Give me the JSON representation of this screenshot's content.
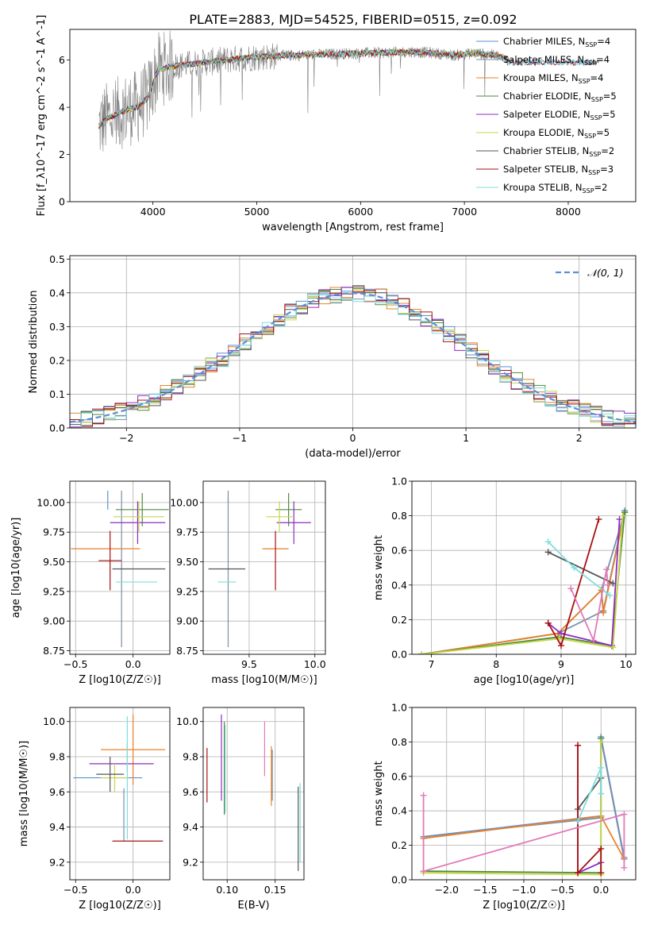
{
  "figure_title": "PLATE=2883, MJD=54525, FIBERID=0515, z=0.092",
  "models": [
    {
      "name": "Chabrier MILES",
      "nssp": "4",
      "color": "#5b8fd9"
    },
    {
      "name": "Salpeter MILES",
      "nssp": "4",
      "color": "#7b8fa8"
    },
    {
      "name": "Kroupa MILES",
      "nssp": "4",
      "color": "#e8822a"
    },
    {
      "name": "Chabrier ELODIE",
      "nssp": "5",
      "color": "#4f8a3a"
    },
    {
      "name": "Salpeter ELODIE",
      "nssp": "5",
      "color": "#8e2dc0"
    },
    {
      "name": "Kroupa ELODIE",
      "nssp": "5",
      "color": "#c7d64a"
    },
    {
      "name": "Chabrier STELIB",
      "nssp": "2",
      "color": "#555555"
    },
    {
      "name": "Salpeter STELIB",
      "nssp": "3",
      "color": "#a81010"
    },
    {
      "name": "Kroupa STELIB",
      "nssp": "2",
      "color": "#7fdede"
    }
  ],
  "legend_prefix": "N",
  "legend_sub": "SSP",
  "chart_data": [
    {
      "type": "line",
      "id": "spectrum",
      "xlabel": "wavelength [Angstrom, rest frame]",
      "ylabel": "Flux [f_λ10^-17 erg cm^-2 s^-1 A^-1]",
      "xlim": [
        3200,
        8650
      ],
      "ylim": [
        0,
        7.3
      ],
      "xticks": [
        4000,
        5000,
        6000,
        7000,
        8000
      ],
      "yticks": [
        0,
        2,
        4,
        6
      ],
      "grid": false,
      "legend": "right",
      "data_color": "#808080",
      "continuum_x": [
        3480,
        3550,
        3650,
        3750,
        3850,
        3950,
        4050,
        4150,
        4300,
        4500,
        4700,
        4900,
        5100,
        5300,
        5500,
        5700,
        5900,
        6100,
        6300,
        6500,
        6700,
        6900,
        7100,
        7300,
        7420
      ],
      "continuum_y": [
        3.2,
        3.5,
        3.7,
        3.9,
        4.0,
        4.4,
        5.6,
        5.7,
        5.8,
        5.9,
        6.0,
        6.1,
        6.15,
        6.2,
        6.22,
        6.25,
        6.28,
        6.3,
        6.32,
        6.35,
        6.3,
        6.2,
        6.3,
        6.2,
        6.0
      ]
    },
    {
      "type": "histogram",
      "id": "residuals",
      "xlabel": "(data-model)/error",
      "ylabel": "Normed distribution",
      "xlim": [
        -2.5,
        2.5
      ],
      "ylim": [
        0,
        0.51
      ],
      "xticks": [
        -2,
        -1,
        0,
        1,
        2
      ],
      "yticks": [
        0.0,
        0.1,
        0.2,
        0.3,
        0.4,
        0.5
      ],
      "grid": true,
      "legend": "top-right",
      "reference_label": "𝒩(0, 1)",
      "reference_color": "#5b8fd9",
      "bin_width": 0.1
    },
    {
      "type": "scatter",
      "id": "age_vs_Z",
      "xlabel": "Z [log10(Z/Z☉)]",
      "ylabel": "age [log10(age/yr)]",
      "xlim": [
        -0.55,
        0.32
      ],
      "ylim": [
        8.72,
        10.18
      ],
      "xticks": [
        -0.5,
        0.0
      ],
      "yticks": [
        8.75,
        9.0,
        9.25,
        9.5,
        9.75,
        10.0
      ],
      "grid": true,
      "points": [
        {
          "x": -0.22,
          "y": 10.02,
          "xerr": 0.0,
          "yerr": 0.08
        },
        {
          "x": -0.1,
          "y": 9.44,
          "xerr": 0.0,
          "yerr": 0.66
        },
        {
          "x": -0.24,
          "y": 9.61,
          "xerr": 0.3,
          "yerr": 0.0
        },
        {
          "x": 0.08,
          "y": 9.94,
          "xerr": 0.23,
          "yerr": 0.14
        },
        {
          "x": 0.04,
          "y": 9.83,
          "xerr": 0.24,
          "yerr": 0.18
        },
        {
          "x": 0.05,
          "y": 9.88,
          "xerr": 0.22,
          "yerr": 0.13
        },
        {
          "x": 0.05,
          "y": 9.44,
          "xerr": 0.23,
          "yerr": 0.0
        },
        {
          "x": -0.2,
          "y": 9.51,
          "xerr": 0.1,
          "yerr": 0.25
        },
        {
          "x": 0.03,
          "y": 9.33,
          "xerr": 0.18,
          "yerr": 0.0
        }
      ]
    },
    {
      "type": "scatter",
      "id": "age_vs_mass",
      "xlabel": "mass [log10(M/M☉)]",
      "ylabel": "",
      "xlim": [
        9.15,
        10.08
      ],
      "ylim": [
        8.72,
        10.18
      ],
      "xticks": [
        9.5,
        10.0
      ],
      "yticks": [
        8.75,
        9.0,
        9.25,
        9.5,
        9.75,
        10.0
      ],
      "grid": true,
      "points": [
        {
          "x": 9.34,
          "y": 10.02,
          "xerr": 0.0,
          "yerr": 0.0
        },
        {
          "x": 9.34,
          "y": 9.44,
          "xerr": 0.0,
          "yerr": 0.66
        },
        {
          "x": 9.7,
          "y": 9.61,
          "xerr": 0.1,
          "yerr": 0.0
        },
        {
          "x": 9.8,
          "y": 9.94,
          "xerr": 0.1,
          "yerr": 0.14
        },
        {
          "x": 9.84,
          "y": 9.83,
          "xerr": 0.13,
          "yerr": 0.18
        },
        {
          "x": 9.73,
          "y": 9.88,
          "xerr": 0.1,
          "yerr": 0.13
        },
        {
          "x": 9.33,
          "y": 9.44,
          "xerr": 0.14,
          "yerr": 0.0
        },
        {
          "x": 9.7,
          "y": 9.51,
          "xerr": 0.0,
          "yerr": 0.25
        },
        {
          "x": 9.33,
          "y": 9.33,
          "xerr": 0.07,
          "yerr": 0.0
        }
      ]
    },
    {
      "type": "line",
      "id": "mass_weight_vs_age",
      "xlabel": "age [log10(age/yr)]",
      "ylabel": "mass weight",
      "xlim": [
        6.7,
        10.15
      ],
      "ylim": [
        0,
        1.0
      ],
      "xticks": [
        7,
        8,
        9,
        10
      ],
      "yticks": [
        0.0,
        0.2,
        0.4,
        0.6,
        0.8,
        1.0
      ],
      "grid": true,
      "series_points": [
        {
          "x": [
            6.85,
            8.95,
            9.62,
            9.65,
            9.98
          ],
          "y": [
            0.0,
            0.12,
            0.37,
            0.25,
            0.83
          ]
        },
        {
          "x": [
            6.85,
            8.95,
            9.65,
            9.62,
            9.98
          ],
          "y": [
            0.0,
            0.12,
            0.25,
            0.37,
            0.82
          ]
        },
        {
          "x": [
            6.85,
            8.95,
            9.62,
            9.65,
            9.98
          ],
          "y": [
            0.0,
            0.12,
            0.37,
            0.24,
            0.82
          ]
        },
        {
          "x": [
            6.85,
            8.97,
            9.78,
            9.98
          ],
          "y": [
            0.0,
            0.1,
            0.05,
            0.82
          ]
        },
        {
          "x": [
            8.8,
            9.0,
            9.78,
            9.9
          ],
          "y": [
            0.18,
            0.12,
            0.05,
            0.78
          ]
        },
        {
          "x": [
            6.85,
            8.97,
            9.8,
            9.95
          ],
          "y": [
            0.0,
            0.09,
            0.04,
            0.8
          ]
        },
        {
          "x": [
            8.8,
            9.8
          ],
          "y": [
            0.59,
            0.41
          ]
        },
        {
          "x": [
            8.8,
            9.0,
            9.58
          ],
          "y": [
            0.18,
            0.05,
            0.78
          ]
        },
        {
          "x": [
            8.8,
            9.2,
            9.75
          ],
          "y": [
            0.65,
            0.5,
            0.34
          ]
        }
      ],
      "extra_points": [
        {
          "series": 2,
          "x": [
            9.15,
            9.5,
            9.7,
            9.72
          ],
          "y": [
            0.38,
            0.08,
            0.49,
            0.4
          ],
          "color_index": 9
        }
      ]
    },
    {
      "type": "scatter",
      "id": "mass_vs_Z",
      "xlabel": "Z [log10(Z/Z☉)]",
      "ylabel": "mass [log10(M/M☉)]",
      "xlim": [
        -0.55,
        0.32
      ],
      "ylim": [
        9.1,
        10.08
      ],
      "xticks": [
        -0.5,
        0.0
      ],
      "yticks": [
        9.2,
        9.4,
        9.6,
        9.8,
        10.0
      ],
      "grid": true,
      "points": [
        {
          "x": -0.22,
          "y": 9.68,
          "xerr": 0.3,
          "yerr": 0.0
        },
        {
          "x": -0.08,
          "y": 9.47,
          "xerr": 0.0,
          "yerr": 0.15
        },
        {
          "x": 0.0,
          "y": 9.84,
          "xerr": 0.28,
          "yerr": 0.2
        },
        {
          "x": -0.05,
          "y": 9.8,
          "xerr": 0.0,
          "yerr": 0.08
        },
        {
          "x": -0.1,
          "y": 9.76,
          "xerr": 0.28,
          "yerr": 0.0
        },
        {
          "x": -0.16,
          "y": 9.68,
          "xerr": 0.12,
          "yerr": 0.08
        },
        {
          "x": -0.2,
          "y": 9.7,
          "xerr": 0.12,
          "yerr": 0.1
        },
        {
          "x": 0.04,
          "y": 9.32,
          "xerr": 0.22,
          "yerr": 0.0
        },
        {
          "x": -0.05,
          "y": 9.68,
          "xerr": 0.0,
          "yerr": 0.35
        }
      ]
    },
    {
      "type": "scatter",
      "id": "mass_vs_EBV",
      "xlabel": "E(B-V)",
      "ylabel": "",
      "xlim": [
        0.075,
        0.18
      ],
      "ylim": [
        9.1,
        10.08
      ],
      "xticks": [
        0.1,
        0.15
      ],
      "yticks": [
        9.2,
        9.4,
        9.6,
        9.8,
        10.0
      ],
      "grid": true,
      "segments": [
        {
          "x": 0.079,
          "y1": 9.54,
          "y2": 9.85,
          "color_index": 7
        },
        {
          "x": 0.094,
          "y1": 9.55,
          "y2": 10.04,
          "color_index": 4
        },
        {
          "x": 0.097,
          "y1": 9.47,
          "y2": 10.0,
          "color_index": 3
        },
        {
          "x": 0.098,
          "y1": 9.48,
          "y2": 9.98,
          "color_index": 8
        },
        {
          "x": 0.139,
          "y1": 9.69,
          "y2": 10.0,
          "color_index": 9
        },
        {
          "x": 0.146,
          "y1": 9.52,
          "y2": 9.86,
          "color_index": 2
        },
        {
          "x": 0.147,
          "y1": 9.55,
          "y2": 9.84,
          "color_index": 1
        },
        {
          "x": 0.174,
          "y1": 9.15,
          "y2": 9.63,
          "color_index": 6
        },
        {
          "x": 0.176,
          "y1": 9.2,
          "y2": 9.65,
          "color_index": 8
        }
      ]
    },
    {
      "type": "line",
      "id": "mass_weight_vs_Z",
      "xlabel": "Z [log10(Z/Z☉)]",
      "ylabel": "mass weight",
      "xlim": [
        -2.45,
        0.45
      ],
      "ylim": [
        0,
        1.0
      ],
      "xticks": [
        -2.0,
        -1.5,
        -1.0,
        -0.5,
        0.0
      ],
      "yticks": [
        0.0,
        0.2,
        0.4,
        0.6,
        0.8,
        1.0
      ],
      "grid": true,
      "series_points": [
        {
          "x": [
            -2.3,
            0.0,
            0.0,
            0.3
          ],
          "y": [
            0.25,
            0.37,
            0.83,
            0.13
          ]
        },
        {
          "x": [
            -2.3,
            0.0,
            0.0,
            0.3
          ],
          "y": [
            0.25,
            0.36,
            0.82,
            0.12
          ]
        },
        {
          "x": [
            -2.3,
            0.0,
            0.3
          ],
          "y": [
            0.24,
            0.37,
            0.12
          ]
        },
        {
          "x": [
            -2.3,
            0.0,
            0.0
          ],
          "y": [
            0.05,
            0.04,
            0.82
          ]
        },
        {
          "x": [
            -0.3,
            -0.3,
            0.0
          ],
          "y": [
            0.78,
            0.04,
            0.1
          ]
        },
        {
          "x": [
            -2.3,
            0.0,
            0.0
          ],
          "y": [
            0.04,
            0.03,
            0.8
          ]
        },
        {
          "x": [
            -0.3,
            0.0
          ],
          "y": [
            0.41,
            0.59
          ]
        },
        {
          "x": [
            -0.3,
            -0.3,
            0.0,
            0.0
          ],
          "y": [
            0.78,
            0.04,
            0.18,
            0.04
          ]
        },
        {
          "x": [
            -0.3,
            0.0,
            0.0
          ],
          "y": [
            0.34,
            0.65,
            0.5
          ]
        }
      ],
      "extra_points": [
        {
          "series": 9,
          "x": [
            -2.3,
            -2.3,
            0.3,
            0.3
          ],
          "y": [
            0.49,
            0.05,
            0.38,
            0.07
          ],
          "color_index": 9
        }
      ]
    }
  ],
  "extra_color": "#e07ab8"
}
